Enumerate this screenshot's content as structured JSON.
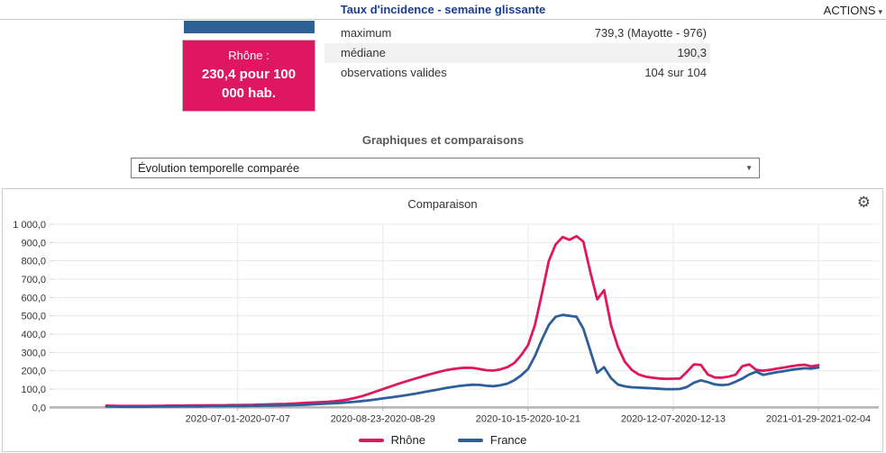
{
  "header": {
    "title": "Taux d'incidence - semaine glissante",
    "actions_label": "ACTIONS"
  },
  "icons": {
    "gear": "⚙",
    "caret_down": "▾",
    "select_caret": "▼"
  },
  "stat_card": {
    "region": "Rhône :",
    "value_line1": "230,4 pour 100",
    "value_line2": "000 hab.",
    "bg": "#df1760"
  },
  "stats_table": {
    "rows": [
      {
        "label": "maximum",
        "value": "739,3 (Mayotte - 976)"
      },
      {
        "label": "médiane",
        "value": "190,3"
      },
      {
        "label": "observations valides",
        "value": "104 sur 104"
      }
    ]
  },
  "section": {
    "heading": "Graphiques et comparaisons"
  },
  "chart_selector": {
    "value": "Évolution temporelle comparée"
  },
  "chart_panel": {
    "title": "Comparaison"
  },
  "chart_data": {
    "type": "line",
    "title": "Comparaison",
    "xlabel": "",
    "ylabel": "",
    "ylim": [
      0,
      1000
    ],
    "grid": true,
    "legend_position": "bottom",
    "y_ticks": [
      0,
      100,
      200,
      300,
      400,
      500,
      600,
      700,
      800,
      900,
      1000
    ],
    "y_tick_labels": [
      "0,0",
      "100,0",
      "200,0",
      "300,0",
      "400,0",
      "500,0",
      "600,0",
      "700,0",
      "800,0",
      "900,0",
      "1 000,0"
    ],
    "x_tick_indices": [
      19,
      40,
      61,
      82,
      103
    ],
    "x_tick_labels": [
      "2020-07-01-2020-07-07",
      "2020-08-23-2020-08-29",
      "2020-10-15-2020-10-21",
      "2020-12-07-2020-12-13",
      "2021-01-29-2021-02-04"
    ],
    "series": [
      {
        "name": "Rhône",
        "color": "#e0175d",
        "values": [
          10,
          9,
          8,
          8,
          8,
          8,
          8,
          9,
          9,
          10,
          10,
          10,
          11,
          11,
          11,
          12,
          12,
          12,
          13,
          13,
          14,
          14,
          15,
          16,
          17,
          18,
          19,
          21,
          23,
          25,
          27,
          29,
          31,
          34,
          38,
          44,
          52,
          62,
          74,
          87,
          100,
          113,
          126,
          138,
          150,
          161,
          172,
          183,
          193,
          202,
          209,
          214,
          217,
          216,
          210,
          203,
          201,
          208,
          220,
          242,
          285,
          340,
          450,
          620,
          800,
          890,
          930,
          915,
          935,
          905,
          740,
          590,
          640,
          450,
          330,
          250,
          205,
          180,
          168,
          162,
          158,
          156,
          157,
          158,
          195,
          235,
          232,
          180,
          163,
          162,
          168,
          178,
          225,
          235,
          205,
          200,
          205,
          212,
          218,
          224,
          230,
          233,
          224,
          230.4
        ]
      },
      {
        "name": "France",
        "color": "#2f5f9b",
        "values": [
          5,
          5,
          4,
          4,
          4,
          4,
          4,
          5,
          5,
          5,
          5,
          6,
          6,
          6,
          6,
          7,
          7,
          7,
          8,
          8,
          8,
          9,
          9,
          10,
          10,
          11,
          12,
          13,
          14,
          15,
          17,
          19,
          21,
          23,
          25,
          28,
          31,
          35,
          39,
          44,
          49,
          54,
          59,
          65,
          71,
          77,
          84,
          91,
          98,
          105,
          111,
          117,
          121,
          124,
          123,
          118,
          116,
          121,
          130,
          148,
          175,
          210,
          280,
          370,
          450,
          495,
          505,
          500,
          495,
          430,
          310,
          190,
          220,
          160,
          125,
          115,
          110,
          108,
          106,
          104,
          102,
          100,
          100,
          101,
          112,
          135,
          148,
          138,
          126,
          122,
          125,
          140,
          158,
          180,
          195,
          178,
          185,
          192,
          198,
          205,
          210,
          214,
          212,
          218
        ]
      }
    ]
  }
}
